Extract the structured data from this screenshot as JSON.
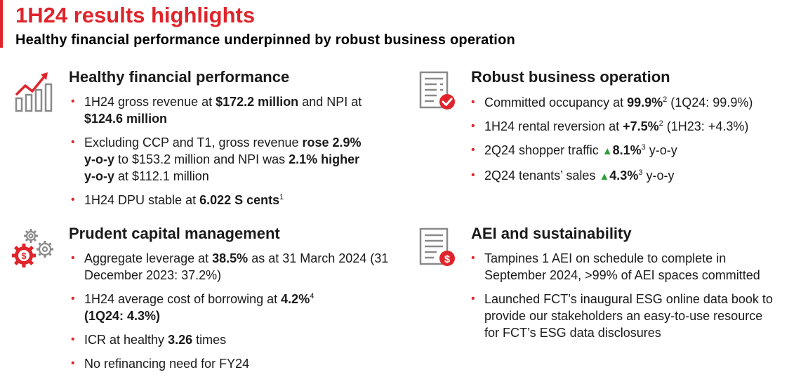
{
  "header": {
    "title": "1H24 results highlights",
    "subtitle": "Healthy financial performance underpinned by robust business operation"
  },
  "colors": {
    "accent": "#e0242b",
    "up_arrow": "#2e9e3a"
  },
  "sections": {
    "financial": {
      "icon": "bar-chart-trend-icon",
      "title": "Healthy financial performance",
      "b1": {
        "t1": "1H24 gross revenue at ",
        "v1": "$172.2 million",
        "t2": " and NPI at ",
        "v2": "$124.6 million"
      },
      "b2": {
        "t1": "Excluding CCP and T1, gross revenue ",
        "v1": "rose 2.9% y-o-y",
        "t2": " to $153.2 million and NPI was ",
        "v2": "2.1% higher y-o-y",
        "t3": " at $112.1 million"
      },
      "b3": {
        "t1": "1H24 DPU stable at ",
        "v1": "6.022 S cents",
        "sup": "1"
      }
    },
    "operation": {
      "icon": "document-check-icon",
      "title": "Robust business operation",
      "b1": {
        "t1": "Committed occupancy at ",
        "v1": "99.9%",
        "sup": "2",
        "t2": " (1Q24: 99.9%)"
      },
      "b2": {
        "t1": "1H24 rental reversion at ",
        "v1": "+7.5%",
        "sup": "2",
        "t2": " (1H23: +4.3%)"
      },
      "b3": {
        "t1": "2Q24 shopper traffic ",
        "arrow": "▲",
        "v1": "8.1%",
        "sup": "3",
        "t2": " y-o-y"
      },
      "b4": {
        "t1": "2Q24 tenants’ sales ",
        "arrow": "▲",
        "v1": "4.3%",
        "sup": "3",
        "t2": " y-o-y"
      }
    },
    "capital": {
      "icon": "gears-dollar-icon",
      "title": "Prudent capital management",
      "b1": {
        "t1": "Aggregate leverage at ",
        "v1": "38.5%",
        "t2": " as at 31 March 2024 (31 December 2023: 37.2%)"
      },
      "b2": {
        "t1": "1H24 average cost of borrowing at ",
        "v1": "4.2%",
        "sup": "4",
        "v2": "(1Q24: 4.3%)"
      },
      "b3": {
        "t1": "ICR at healthy ",
        "v1": "3.26",
        "t2": " times"
      },
      "b4": {
        "t1": "No refinancing need for FY24"
      }
    },
    "aei": {
      "icon": "document-dollar-icon",
      "title": "AEI and sustainability",
      "b1": {
        "t1": "Tampines 1 AEI on schedule to complete in September 2024, >99% of AEI spaces committed"
      },
      "b2": {
        "t1": "Launched FCT’s inaugural ESG online data book to provide our stakeholders an easy-to-use resource for FCT’s ESG data disclosures"
      }
    }
  }
}
